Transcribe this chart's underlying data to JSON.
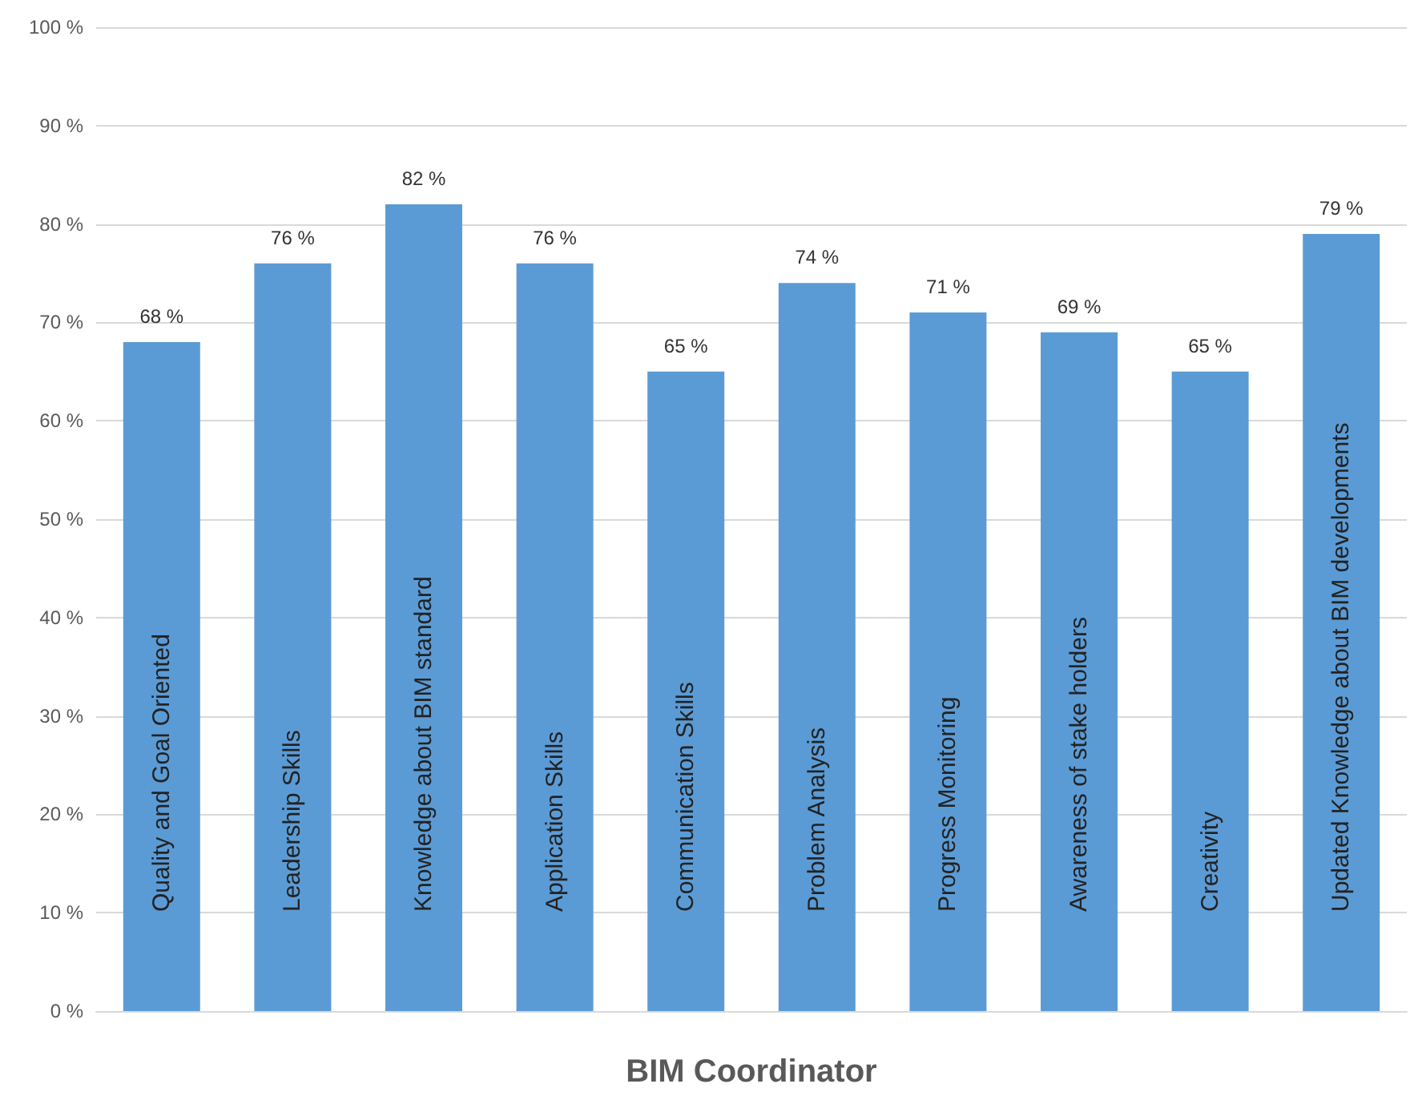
{
  "chart_data": {
    "type": "bar",
    "xlabel": "BIM Coordinator",
    "categories": [
      "Quality and Goal Oriented",
      "Leadership Skills",
      "Knowledge about BIM standard",
      "Application Skills",
      "Communication Skills",
      "Problem Analysis",
      "Progress Monitoring",
      "Awareness of stake holders",
      "Creativity",
      "Updated Knowledge about BIM developments"
    ],
    "values": [
      68,
      76,
      82,
      76,
      65,
      74,
      71,
      69,
      65,
      79
    ],
    "value_labels": [
      "68 %",
      "76 %",
      "82 %",
      "76 %",
      "65 %",
      "74 %",
      "71 %",
      "69 %",
      "65 %",
      "79 %"
    ],
    "color": "#5b9bd5",
    "ylim": [
      0,
      100
    ],
    "yticks": [
      {
        "value": 0,
        "label": "0 %"
      },
      {
        "value": 10,
        "label": "10 %"
      },
      {
        "value": 20,
        "label": "20 %"
      },
      {
        "value": 30,
        "label": "30 %"
      },
      {
        "value": 40,
        "label": "40 %"
      },
      {
        "value": 50,
        "label": "50 %"
      },
      {
        "value": 60,
        "label": "60 %"
      },
      {
        "value": 70,
        "label": "70 %"
      },
      {
        "value": 80,
        "label": "80 %"
      },
      {
        "value": 90,
        "label": "90 %"
      },
      {
        "value": 100,
        "label": "100 %"
      }
    ],
    "grid": true
  }
}
